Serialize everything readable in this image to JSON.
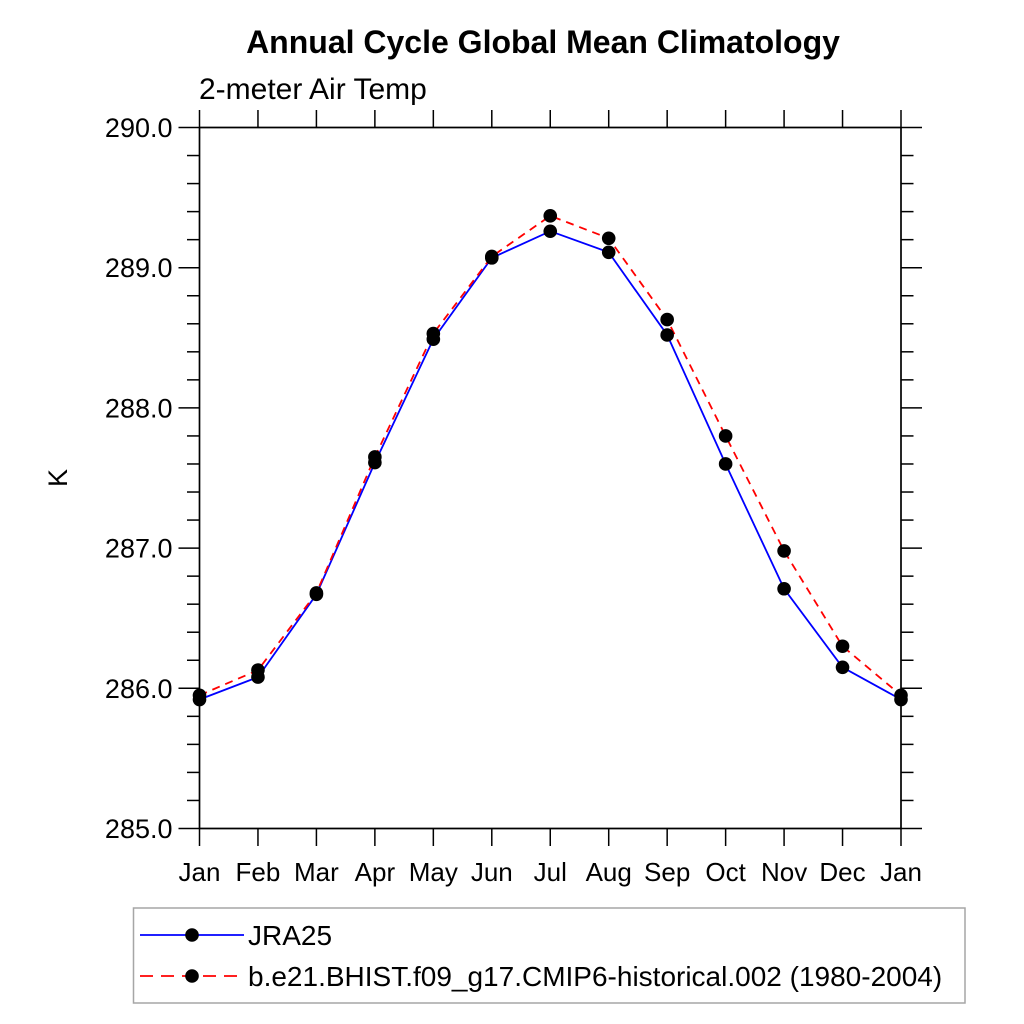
{
  "chart_data": {
    "type": "line",
    "title": "Annual Cycle Global Mean Climatology",
    "subtitle": "2-meter Air Temp",
    "ylabel": "K",
    "x_categories": [
      "Jan",
      "Feb",
      "Mar",
      "Apr",
      "May",
      "Jun",
      "Jul",
      "Aug",
      "Sep",
      "Oct",
      "Nov",
      "Dec",
      "Jan"
    ],
    "ylim": [
      285.0,
      290.0
    ],
    "ytick_interval": 1.0,
    "yminor_interval": 0.2,
    "ytick_labels": [
      "285.0",
      "286.0",
      "287.0",
      "288.0",
      "289.0",
      "290.0"
    ],
    "grid": false,
    "legend_position": "bottom-left",
    "marker": {
      "shape": "filled-circle",
      "color": "#000000"
    },
    "series": [
      {
        "name": "JRA25",
        "color": "#0000ff",
        "line_style": "solid",
        "values": [
          285.92,
          286.08,
          286.67,
          287.61,
          288.49,
          289.07,
          289.26,
          289.11,
          288.52,
          287.6,
          286.71,
          286.15,
          285.92
        ]
      },
      {
        "name": "b.e21.BHIST.f09_g17.CMIP6-historical.002 (1980-2004)",
        "color": "#ff0000",
        "line_style": "dashed",
        "values": [
          285.95,
          286.13,
          286.68,
          287.65,
          288.53,
          289.08,
          289.37,
          289.21,
          288.63,
          287.8,
          286.98,
          286.3,
          285.95
        ]
      }
    ]
  }
}
